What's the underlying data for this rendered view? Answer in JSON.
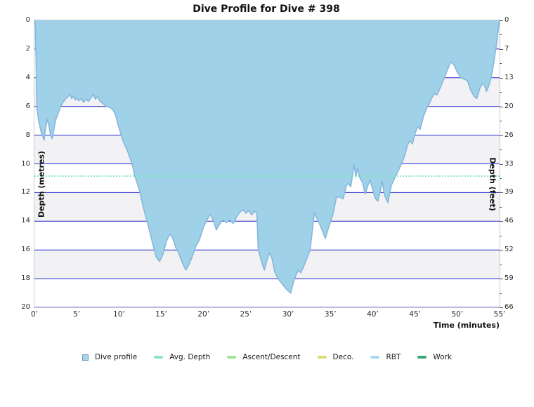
{
  "title": "Dive Profile for Dive # 398",
  "axes": {
    "x": {
      "label": "Time (minutes)",
      "tick_minutes": [
        0,
        5,
        10,
        15,
        20,
        25,
        30,
        35,
        40,
        45,
        50,
        55
      ],
      "tick_labels": [
        "0’",
        "5’",
        "10’",
        "15’",
        "20’",
        "25’",
        "30’",
        "35’",
        "40’",
        "45’",
        "50’",
        "55’"
      ]
    },
    "y_left": {
      "label": "Depth (metres)",
      "tick_metres": [
        0,
        2,
        4,
        6,
        8,
        10,
        12,
        14,
        16,
        18,
        20
      ]
    },
    "y_right": {
      "label": "Depth (feet)",
      "tick_metres": [
        0,
        2,
        4,
        6,
        8,
        10,
        12,
        14,
        16,
        18,
        20
      ],
      "tick_labels": [
        "0",
        "7",
        "13",
        "20",
        "26",
        "33",
        "39",
        "46",
        "52",
        "59",
        "66"
      ],
      "minor_tick_metres": [
        1,
        3,
        5,
        7,
        9,
        11,
        13,
        15,
        17,
        19
      ]
    }
  },
  "legend": [
    {
      "label": "Dive profile",
      "type": "square",
      "color": "#a9d4e8"
    },
    {
      "label": "Avg. Depth",
      "type": "line",
      "color": "#8be4c5"
    },
    {
      "label": "Ascent/Descent",
      "type": "line",
      "color": "#99e698"
    },
    {
      "label": "Deco.",
      "type": "line",
      "color": "#d9dd70"
    },
    {
      "label": "RBT",
      "type": "line",
      "color": "#a9d7ee"
    },
    {
      "label": "Work",
      "type": "line",
      "color": "#3aa876"
    }
  ],
  "chart_data": {
    "type": "area",
    "title": "Dive Profile for Dive # 398",
    "xlabel": "Time (minutes)",
    "ylabel_left": "Depth (metres)",
    "ylabel_right": "Depth (feet)",
    "x_range_minutes": [
      0,
      55
    ],
    "depth_range_metres": [
      0,
      20
    ],
    "grid_interval_metres": 2,
    "avg_depth_metres": 10.85,
    "max_depth_metres": 19.0,
    "colors": {
      "profile_fill": "#9fd2e8",
      "profile_stroke": "#85b7dc",
      "gridline": "#2727cd",
      "band_gray": "#f2f2f5",
      "band_white": "#ffffff",
      "avg_depth_line": "#82e7c0",
      "plot_border": "#c9cdd1"
    },
    "profile_time_depth": [
      [
        0,
        0
      ],
      [
        0.12,
        0.4
      ],
      [
        0.3,
        6.2
      ],
      [
        0.5,
        7.0
      ],
      [
        0.8,
        7.8
      ],
      [
        1.0,
        8.1
      ],
      [
        1.15,
        8.35
      ],
      [
        1.3,
        7.6
      ],
      [
        1.5,
        6.9
      ],
      [
        1.7,
        7.3
      ],
      [
        1.9,
        8.0
      ],
      [
        2.1,
        8.25
      ],
      [
        2.3,
        7.6
      ],
      [
        2.5,
        6.95
      ],
      [
        2.8,
        6.5
      ],
      [
        3.1,
        6.0
      ],
      [
        3.4,
        5.7
      ],
      [
        3.7,
        5.45
      ],
      [
        4.0,
        5.3
      ],
      [
        4.2,
        5.15
      ],
      [
        4.4,
        5.45
      ],
      [
        4.6,
        5.3
      ],
      [
        4.8,
        5.55
      ],
      [
        5.0,
        5.4
      ],
      [
        5.2,
        5.6
      ],
      [
        5.5,
        5.45
      ],
      [
        5.8,
        5.7
      ],
      [
        6.1,
        5.5
      ],
      [
        6.4,
        5.65
      ],
      [
        6.7,
        5.4
      ],
      [
        7.0,
        5.15
      ],
      [
        7.2,
        5.5
      ],
      [
        7.5,
        5.3
      ],
      [
        7.7,
        5.6
      ],
      [
        8.0,
        5.75
      ],
      [
        8.3,
        5.9
      ],
      [
        8.6,
        6.0
      ],
      [
        9.0,
        6.1
      ],
      [
        9.3,
        6.25
      ],
      [
        9.6,
        6.6
      ],
      [
        9.9,
        7.3
      ],
      [
        10.4,
        8.3
      ],
      [
        11.0,
        9.1
      ],
      [
        11.5,
        9.9
      ],
      [
        11.9,
        10.9
      ],
      [
        12.4,
        11.8
      ],
      [
        12.9,
        13.1
      ],
      [
        13.5,
        14.4
      ],
      [
        14.0,
        15.6
      ],
      [
        14.4,
        16.5
      ],
      [
        14.8,
        16.8
      ],
      [
        15.2,
        16.3
      ],
      [
        15.6,
        15.4
      ],
      [
        16.0,
        14.9
      ],
      [
        16.3,
        15.1
      ],
      [
        16.7,
        15.8
      ],
      [
        17.1,
        16.3
      ],
      [
        17.5,
        16.9
      ],
      [
        17.9,
        17.4
      ],
      [
        18.3,
        17.0
      ],
      [
        18.7,
        16.4
      ],
      [
        19.1,
        15.7
      ],
      [
        19.5,
        15.3
      ],
      [
        20.0,
        14.4
      ],
      [
        20.4,
        13.9
      ],
      [
        20.8,
        13.5
      ],
      [
        21.2,
        14.0
      ],
      [
        21.5,
        14.6
      ],
      [
        21.9,
        14.2
      ],
      [
        22.3,
        13.9
      ],
      [
        22.7,
        14.1
      ],
      [
        23.1,
        13.9
      ],
      [
        23.5,
        14.15
      ],
      [
        23.9,
        13.7
      ],
      [
        24.3,
        13.35
      ],
      [
        24.7,
        13.2
      ],
      [
        25.0,
        13.45
      ],
      [
        25.3,
        13.25
      ],
      [
        25.7,
        13.55
      ],
      [
        26.0,
        13.3
      ],
      [
        26.3,
        13.4
      ],
      [
        26.45,
        15.9
      ],
      [
        26.7,
        16.5
      ],
      [
        27.0,
        17.1
      ],
      [
        27.2,
        17.4
      ],
      [
        27.5,
        16.7
      ],
      [
        27.8,
        16.2
      ],
      [
        28.1,
        16.6
      ],
      [
        28.4,
        17.5
      ],
      [
        28.8,
        18.0
      ],
      [
        29.2,
        18.3
      ],
      [
        29.6,
        18.6
      ],
      [
        30.0,
        18.85
      ],
      [
        30.3,
        19.0
      ],
      [
        30.6,
        18.3
      ],
      [
        30.9,
        17.8
      ],
      [
        31.2,
        17.4
      ],
      [
        31.5,
        17.6
      ],
      [
        31.8,
        17.2
      ],
      [
        32.2,
        16.6
      ],
      [
        32.6,
        16.0
      ],
      [
        33.1,
        13.4
      ],
      [
        33.5,
        13.9
      ],
      [
        33.8,
        14.3
      ],
      [
        34.4,
        15.2
      ],
      [
        34.8,
        14.4
      ],
      [
        35.3,
        13.5
      ],
      [
        35.7,
        12.35
      ],
      [
        36.1,
        12.3
      ],
      [
        36.5,
        12.45
      ],
      [
        36.9,
        11.5
      ],
      [
        37.1,
        11.35
      ],
      [
        37.4,
        11.6
      ],
      [
        37.8,
        10.05
      ],
      [
        38.0,
        10.9
      ],
      [
        38.2,
        10.3
      ],
      [
        38.5,
        11.0
      ],
      [
        38.8,
        11.3
      ],
      [
        39.1,
        12.1
      ],
      [
        39.5,
        11.4
      ],
      [
        39.7,
        11.15
      ],
      [
        40.0,
        11.8
      ],
      [
        40.3,
        12.4
      ],
      [
        40.6,
        12.6
      ],
      [
        40.9,
        11.9
      ],
      [
        41.1,
        11.2
      ],
      [
        41.4,
        12.2
      ],
      [
        41.8,
        12.7
      ],
      [
        42.2,
        11.5
      ],
      [
        42.6,
        11.0
      ],
      [
        43.0,
        10.5
      ],
      [
        43.4,
        10.0
      ],
      [
        43.8,
        9.4
      ],
      [
        44.1,
        8.7
      ],
      [
        44.4,
        8.4
      ],
      [
        44.7,
        8.6
      ],
      [
        45.0,
        7.9
      ],
      [
        45.3,
        7.4
      ],
      [
        45.6,
        7.6
      ],
      [
        46.0,
        6.7
      ],
      [
        46.4,
        6.1
      ],
      [
        46.7,
        5.8
      ],
      [
        47.0,
        5.4
      ],
      [
        47.3,
        5.1
      ],
      [
        47.6,
        5.2
      ],
      [
        48.0,
        4.7
      ],
      [
        48.4,
        4.1
      ],
      [
        48.8,
        3.5
      ],
      [
        49.2,
        2.9
      ],
      [
        49.6,
        3.1
      ],
      [
        50.0,
        3.6
      ],
      [
        50.4,
        4.0
      ],
      [
        50.8,
        4.1
      ],
      [
        51.2,
        4.2
      ],
      [
        51.6,
        4.9
      ],
      [
        52.0,
        5.3
      ],
      [
        52.3,
        5.45
      ],
      [
        52.7,
        4.7
      ],
      [
        53.0,
        4.4
      ],
      [
        53.2,
        4.5
      ],
      [
        53.45,
        4.95
      ],
      [
        53.7,
        4.6
      ],
      [
        54.0,
        4.0
      ],
      [
        54.3,
        3.0
      ],
      [
        54.6,
        1.8
      ],
      [
        54.85,
        0.6
      ],
      [
        55,
        0
      ]
    ]
  }
}
